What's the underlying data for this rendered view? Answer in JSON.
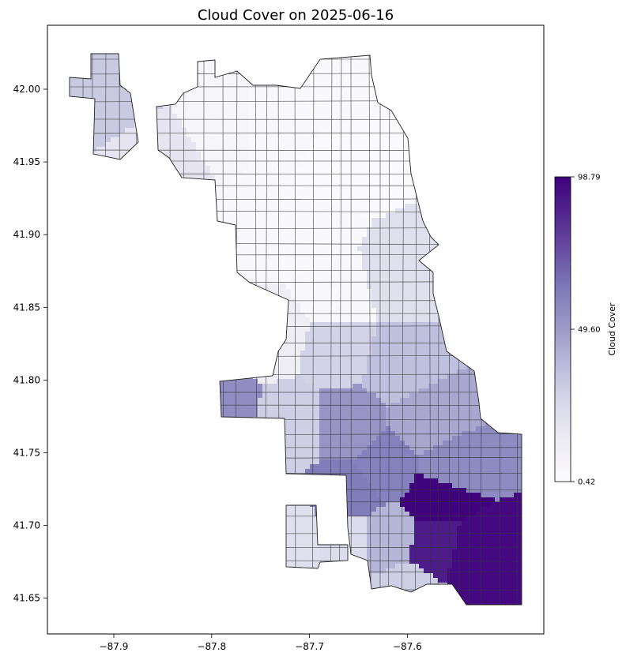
{
  "chart_data": {
    "type": "choropleth",
    "title": "Cloud Cover on 2025-06-16",
    "colorbar": {
      "label": "Cloud Cover",
      "min": 0.42,
      "max": 98.79,
      "tick_labels": [
        "98.79",
        "49.60",
        "0.42"
      ],
      "tick_values": [
        98.79,
        49.6,
        0.42
      ],
      "colormap": [
        "#fcfbfd",
        "#efedf5",
        "#dadaeb",
        "#bcbddc",
        "#9e9ac8",
        "#807dba",
        "#6a51a3",
        "#54278f",
        "#3f007d"
      ]
    },
    "x_axis": {
      "range": [
        -87.96,
        -87.5
      ],
      "ticks": [
        -87.9,
        -87.8,
        -87.7,
        -87.6
      ],
      "tick_labels": [
        "−87.9",
        "−87.8",
        "−87.7",
        "−87.6"
      ]
    },
    "y_axis": {
      "range": [
        41.625,
        42.045
      ],
      "ticks": [
        41.65,
        41.7,
        41.75,
        41.8,
        41.85,
        41.9,
        41.95,
        42.0
      ],
      "tick_labels": [
        "41.65",
        "41.70",
        "41.75",
        "41.80",
        "41.85",
        "41.90",
        "41.95",
        "42.00"
      ]
    },
    "regions": [
      {
        "lon": -87.89,
        "lat": 42.0,
        "value": 32
      },
      {
        "lon": -87.85,
        "lat": 41.96,
        "value": 18
      },
      {
        "lon": -87.8,
        "lat": 41.98,
        "value": 6
      },
      {
        "lon": -87.73,
        "lat": 41.98,
        "value": 4
      },
      {
        "lon": -87.68,
        "lat": 42.0,
        "value": 3
      },
      {
        "lon": -87.66,
        "lat": 41.95,
        "value": 2
      },
      {
        "lon": -87.7,
        "lat": 41.9,
        "value": 3
      },
      {
        "lon": -87.76,
        "lat": 41.9,
        "value": 4
      },
      {
        "lon": -87.67,
        "lat": 41.86,
        "value": 4
      },
      {
        "lon": -87.61,
        "lat": 41.87,
        "value": 22
      },
      {
        "lon": -87.74,
        "lat": 41.83,
        "value": 12
      },
      {
        "lon": -87.67,
        "lat": 41.82,
        "value": 28
      },
      {
        "lon": -87.61,
        "lat": 41.81,
        "value": 36
      },
      {
        "lon": -87.79,
        "lat": 41.78,
        "value": 55
      },
      {
        "lon": -87.72,
        "lat": 41.77,
        "value": 30
      },
      {
        "lon": -87.66,
        "lat": 41.77,
        "value": 52
      },
      {
        "lon": -87.58,
        "lat": 41.77,
        "value": 45
      },
      {
        "lon": -87.62,
        "lat": 41.74,
        "value": 60
      },
      {
        "lon": -87.56,
        "lat": 41.74,
        "value": 56
      },
      {
        "lon": -87.66,
        "lat": 41.72,
        "value": 62
      },
      {
        "lon": -87.57,
        "lat": 41.72,
        "value": 98
      },
      {
        "lon": -87.72,
        "lat": 41.69,
        "value": 22
      },
      {
        "lon": -87.66,
        "lat": 41.69,
        "value": 24
      },
      {
        "lon": -87.62,
        "lat": 41.69,
        "value": 40
      },
      {
        "lon": -87.57,
        "lat": 41.685,
        "value": 90
      },
      {
        "lon": -87.535,
        "lat": 41.68,
        "value": 96
      },
      {
        "lon": -87.6,
        "lat": 41.655,
        "value": 30
      }
    ]
  }
}
